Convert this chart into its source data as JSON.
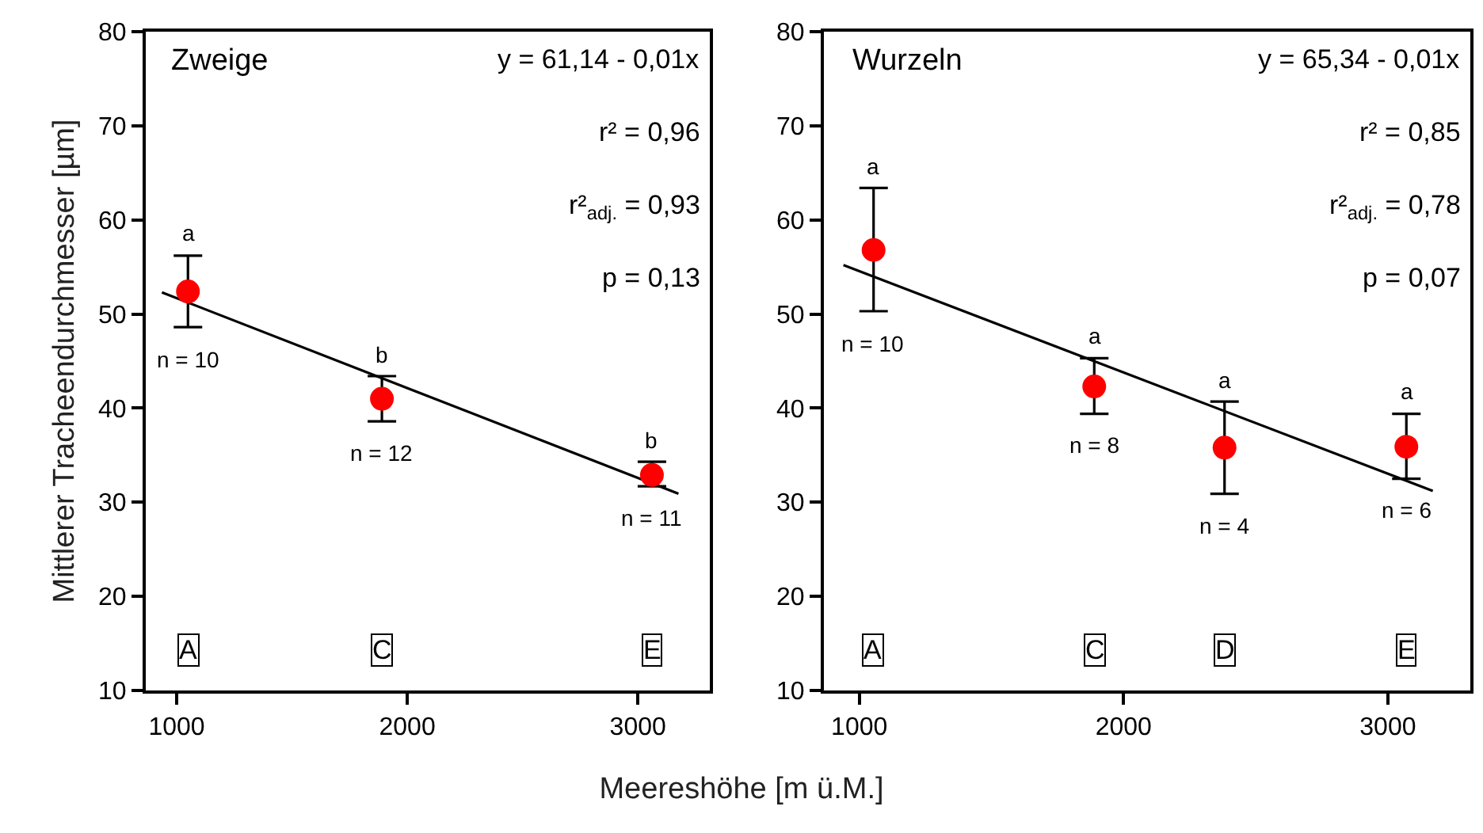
{
  "chart_data": [
    {
      "type": "scatter",
      "title": "Zweige",
      "xlabel": "Meereshöhe [m ü.M.]",
      "ylabel": "Mittlerer Tracheendurchmesser [µm]",
      "xlim": [
        866,
        3312
      ],
      "xticks": [
        1000,
        2000,
        3000
      ],
      "ylim": [
        10,
        80
      ],
      "yticks": [
        10,
        20,
        30,
        40,
        50,
        60,
        70,
        80
      ],
      "grid": false,
      "marker": "circle",
      "series": [
        {
          "type": "line",
          "color": "#000000",
          "x": [
            936,
            3176
          ],
          "values": [
            52.3,
            30.9
          ],
          "marker": "none"
        },
        {
          "color": "#ff0000",
          "x": [
            1049,
            1890,
            3061
          ],
          "values": [
            52.4,
            41.0,
            32.9
          ],
          "errors": [
            [
              48.6,
              56.2
            ],
            [
              38.6,
              43.4
            ],
            [
              31.7,
              34.3
            ]
          ]
        }
      ],
      "annotations": [
        "y = 61,14 - 0,01x",
        "r² = 0,96",
        "r²$_{adj.}$ = 0,93",
        "p = 0,13",
        {
          "text": "a",
          "x": 1049,
          "y": 56.2
        },
        {
          "text": "b",
          "x": 1890,
          "y": 43.4
        },
        {
          "text": "b",
          "x": 3061,
          "y": 34.3
        },
        {
          "text": "n = 10",
          "x": 1049,
          "y": 48.6
        },
        {
          "text": "n = 12",
          "x": 1890,
          "y": 38.6
        },
        {
          "text": "n = 11",
          "x": 3061,
          "y": 31.7
        },
        {
          "text": "A",
          "x": 1049
        },
        {
          "text": "C",
          "x": 1890
        },
        {
          "text": "E",
          "x": 3061
        }
      ]
    },
    {
      "type": "scatter",
      "title": "Wurzeln",
      "xlim": [
        866,
        3312
      ],
      "xticks": [
        1000,
        2000,
        3000
      ],
      "ylim": [
        10,
        80
      ],
      "yticks": [
        10,
        20,
        30,
        40,
        50,
        60,
        70,
        80
      ],
      "grid": false,
      "marker": "circle",
      "series": [
        {
          "type": "line",
          "color": "#000000",
          "x": [
            940,
            3170
          ],
          "values": [
            55.2,
            31.2
          ],
          "marker": "none"
        },
        {
          "color": "#ff0000",
          "x": [
            1054,
            1889,
            2382,
            3070
          ],
          "values": [
            56.8,
            42.3,
            35.8,
            35.9
          ],
          "errors": [
            [
              50.3,
              63.4
            ],
            [
              39.4,
              45.3
            ],
            [
              30.9,
              40.7
            ],
            [
              32.5,
              39.4
            ]
          ]
        }
      ],
      "annotations": [
        "y = 65,34 - 0,01x",
        "r² = 0,85",
        "r²$_{adj.}$ = 0,78",
        "p = 0,07",
        {
          "text": "a",
          "x": 1054,
          "y": 63.4
        },
        {
          "text": "a",
          "x": 1889,
          "y": 45.3
        },
        {
          "text": "a",
          "x": 2382,
          "y": 40.7
        },
        {
          "text": "a",
          "x": 3070,
          "y": 39.4
        },
        {
          "text": "n = 10",
          "x": 1054,
          "y": 50.3
        },
        {
          "text": "n = 8",
          "x": 1889,
          "y": 39.4
        },
        {
          "text": "n = 4",
          "x": 2382,
          "y": 30.9
        },
        {
          "text": "n = 6",
          "x": 3070,
          "y": 32.5
        },
        {
          "text": "A",
          "x": 1054
        },
        {
          "text": "C",
          "x": 1889
        },
        {
          "text": "D",
          "x": 2382
        },
        {
          "text": "E",
          "x": 3070
        }
      ]
    }
  ]
}
